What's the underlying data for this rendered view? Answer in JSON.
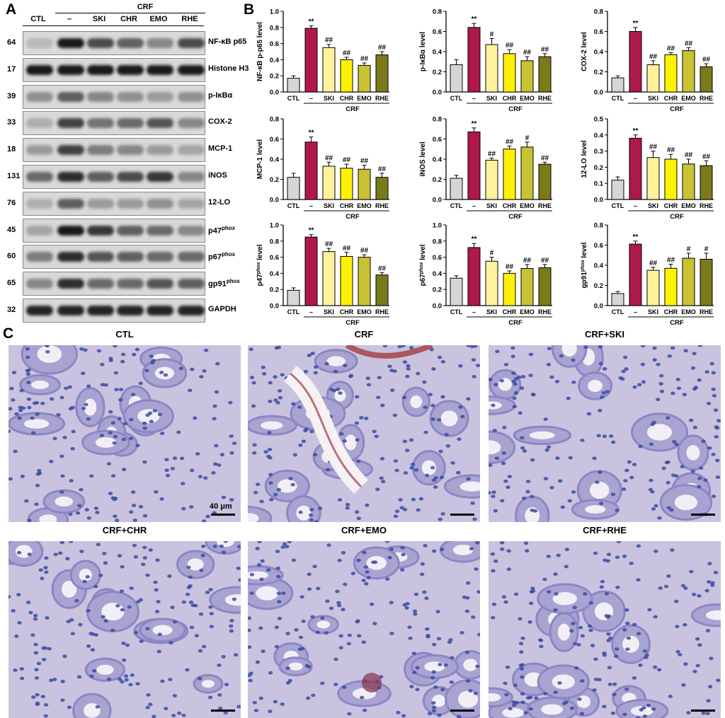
{
  "panels": {
    "a": "A",
    "b": "B",
    "c": "C"
  },
  "western": {
    "group_label": "CRF",
    "lanes": [
      "CTL",
      "–",
      "SKI",
      "CHR",
      "EMO",
      "RHE"
    ],
    "rows": [
      {
        "mw": "64",
        "name": "NF-κB p65",
        "sup": "",
        "dark": [
          0.15,
          0.95,
          0.7,
          0.6,
          0.4,
          0.7
        ]
      },
      {
        "mw": "17",
        "name": "Histone H3",
        "sup": "",
        "dark": [
          0.95,
          0.95,
          0.95,
          0.95,
          0.95,
          0.95
        ]
      },
      {
        "mw": "39",
        "name": "p-IκBα",
        "sup": "",
        "dark": [
          0.35,
          0.6,
          0.4,
          0.35,
          0.3,
          0.35
        ]
      },
      {
        "mw": "33",
        "name": "COX-2",
        "sup": "",
        "dark": [
          0.2,
          0.75,
          0.5,
          0.55,
          0.65,
          0.4
        ]
      },
      {
        "mw": "18",
        "name": "MCP-1",
        "sup": "",
        "dark": [
          0.3,
          0.75,
          0.45,
          0.4,
          0.3,
          0.25
        ]
      },
      {
        "mw": "131",
        "name": "iNOS",
        "sup": "",
        "dark": [
          0.55,
          0.85,
          0.6,
          0.7,
          0.8,
          0.4
        ]
      },
      {
        "mw": "76",
        "name": "12-LO",
        "sup": "",
        "dark": [
          0.2,
          0.6,
          0.3,
          0.3,
          0.35,
          0.25
        ]
      },
      {
        "mw": "45",
        "name": "p47",
        "sup": "phox",
        "dark": [
          0.25,
          0.95,
          0.8,
          0.6,
          0.55,
          0.4
        ]
      },
      {
        "mw": "60",
        "name": "p67",
        "sup": "phox",
        "dark": [
          0.45,
          0.85,
          0.65,
          0.6,
          0.55,
          0.55
        ]
      },
      {
        "mw": "65",
        "name": "gp91",
        "sup": "phox",
        "dark": [
          0.4,
          0.85,
          0.55,
          0.55,
          0.65,
          0.6
        ]
      },
      {
        "mw": "32",
        "name": "GAPDH",
        "sup": "",
        "dark": [
          0.9,
          0.9,
          0.9,
          0.9,
          0.9,
          0.9
        ]
      }
    ]
  },
  "chart_data": [
    {
      "type": "bar",
      "ylabel": "NF-κB p-p65 level",
      "ylim": [
        0,
        1.0
      ],
      "yticks": [
        "0.0",
        "0.2",
        "0.4",
        "0.6",
        "0.8",
        "1.0"
      ],
      "categories": [
        "CTL",
        "–",
        "SKI",
        "CHR",
        "EMO",
        "RHE"
      ],
      "group_label": "CRF",
      "values": [
        0.17,
        0.79,
        0.55,
        0.4,
        0.33,
        0.46
      ],
      "errors": [
        0.03,
        0.03,
        0.04,
        0.03,
        0.03,
        0.04
      ],
      "annotations": [
        "",
        "**",
        "##",
        "##",
        "##",
        "##"
      ]
    },
    {
      "type": "bar",
      "ylabel": "p-IκBα level",
      "ylim": [
        0,
        0.8
      ],
      "yticks": [
        "0.0",
        "0.2",
        "0.4",
        "0.6",
        "0.8"
      ],
      "categories": [
        "CTL",
        "–",
        "SKI",
        "CHR",
        "EMO",
        "RHE"
      ],
      "group_label": "CRF",
      "values": [
        0.27,
        0.64,
        0.47,
        0.38,
        0.31,
        0.35
      ],
      "errors": [
        0.05,
        0.04,
        0.06,
        0.04,
        0.04,
        0.03
      ],
      "annotations": [
        "",
        "**",
        "#",
        "##",
        "##",
        "##"
      ]
    },
    {
      "type": "bar",
      "ylabel": "COX-2 level",
      "ylim": [
        0,
        0.8
      ],
      "yticks": [
        "0.0",
        "0.2",
        "0.4",
        "0.6",
        "0.8"
      ],
      "categories": [
        "CTL",
        "–",
        "SKI",
        "CHR",
        "EMO",
        "RHE"
      ],
      "group_label": "CRF",
      "values": [
        0.14,
        0.6,
        0.27,
        0.37,
        0.41,
        0.25
      ],
      "errors": [
        0.02,
        0.04,
        0.04,
        0.02,
        0.03,
        0.03
      ],
      "annotations": [
        "",
        "**",
        "##",
        "##",
        "##",
        "##"
      ]
    },
    {
      "type": "bar",
      "ylabel": "MCP-1 level",
      "ylim": [
        0,
        0.8
      ],
      "yticks": [
        "0.0",
        "0.2",
        "0.4",
        "0.6",
        "0.8"
      ],
      "categories": [
        "CTL",
        "–",
        "SKI",
        "CHR",
        "EMO",
        "RHE"
      ],
      "group_label": "CRF",
      "values": [
        0.22,
        0.57,
        0.33,
        0.31,
        0.3,
        0.22
      ],
      "errors": [
        0.04,
        0.05,
        0.04,
        0.04,
        0.04,
        0.04
      ],
      "annotations": [
        "",
        "**",
        "##",
        "##",
        "##",
        "##"
      ]
    },
    {
      "type": "bar",
      "ylabel": "iNOS level",
      "ylim": [
        0,
        0.8
      ],
      "yticks": [
        "0.0",
        "0.2",
        "0.4",
        "0.6",
        "0.8"
      ],
      "categories": [
        "CTL",
        "–",
        "SKI",
        "CHR",
        "EMO",
        "RHE"
      ],
      "group_label": "CRF",
      "values": [
        0.21,
        0.67,
        0.39,
        0.5,
        0.52,
        0.35
      ],
      "errors": [
        0.03,
        0.04,
        0.02,
        0.03,
        0.05,
        0.02
      ],
      "annotations": [
        "",
        "**",
        "##",
        "##",
        "#",
        "##"
      ]
    },
    {
      "type": "bar",
      "ylabel": "12-LO level",
      "ylim": [
        0,
        0.5
      ],
      "yticks": [
        "0.0",
        "0.1",
        "0.2",
        "0.3",
        "0.4",
        "0.5"
      ],
      "categories": [
        "CTL",
        "–",
        "SKI",
        "CHR",
        "EMO",
        "RHE"
      ],
      "group_label": "CRF",
      "values": [
        0.12,
        0.38,
        0.26,
        0.25,
        0.22,
        0.21
      ],
      "errors": [
        0.02,
        0.02,
        0.04,
        0.03,
        0.03,
        0.03
      ],
      "annotations": [
        "",
        "**",
        "##",
        "##",
        "##",
        "##"
      ]
    },
    {
      "type": "bar",
      "ylabel": "p47",
      "ylabel_sup": "phox",
      "ylabel_suffix": " level",
      "ylim": [
        0,
        1.0
      ],
      "yticks": [
        "0.0",
        "0.2",
        "0.4",
        "0.6",
        "0.8",
        "1.0"
      ],
      "categories": [
        "CTL",
        "–",
        "SKI",
        "CHR",
        "EMO",
        "RHE"
      ],
      "group_label": "CRF",
      "values": [
        0.19,
        0.85,
        0.67,
        0.61,
        0.6,
        0.38
      ],
      "errors": [
        0.03,
        0.03,
        0.04,
        0.05,
        0.03,
        0.03
      ],
      "annotations": [
        "",
        "**",
        "##",
        "##",
        "##",
        "##"
      ]
    },
    {
      "type": "bar",
      "ylabel": "p67",
      "ylabel_sup": "phox",
      "ylabel_suffix": " level",
      "ylim": [
        0,
        1.0
      ],
      "yticks": [
        "0.0",
        "0.2",
        "0.4",
        "0.6",
        "0.8",
        "1.0"
      ],
      "categories": [
        "CTL",
        "–",
        "SKI",
        "CHR",
        "EMO",
        "RHE"
      ],
      "group_label": "CRF",
      "values": [
        0.34,
        0.72,
        0.55,
        0.4,
        0.46,
        0.47
      ],
      "errors": [
        0.03,
        0.05,
        0.05,
        0.03,
        0.05,
        0.04
      ],
      "annotations": [
        "",
        "**",
        "#",
        "##",
        "##",
        "##"
      ]
    },
    {
      "type": "bar",
      "ylabel": "gp91",
      "ylabel_sup": "phox",
      "ylabel_suffix": " level",
      "ylim": [
        0,
        0.8
      ],
      "yticks": [
        "0.0",
        "0.2",
        "0.4",
        "0.6",
        "0.8"
      ],
      "categories": [
        "CTL",
        "–",
        "SKI",
        "CHR",
        "EMO",
        "RHE"
      ],
      "group_label": "CRF",
      "values": [
        0.12,
        0.61,
        0.35,
        0.37,
        0.47,
        0.46
      ],
      "errors": [
        0.02,
        0.03,
        0.03,
        0.04,
        0.05,
        0.06
      ],
      "annotations": [
        "",
        "**",
        "##",
        "##",
        "#",
        "#"
      ]
    }
  ],
  "bar_colors": [
    "#d6d6d6",
    "#b0184a",
    "#fff29a",
    "#fff200",
    "#c9c233",
    "#7b7a1a"
  ],
  "histology": {
    "titles": [
      "CTL",
      "CRF",
      "CRF+SKI",
      "CRF+CHR",
      "CRF+EMO",
      "CRF+RHE"
    ],
    "scale_label": "40 μm"
  }
}
